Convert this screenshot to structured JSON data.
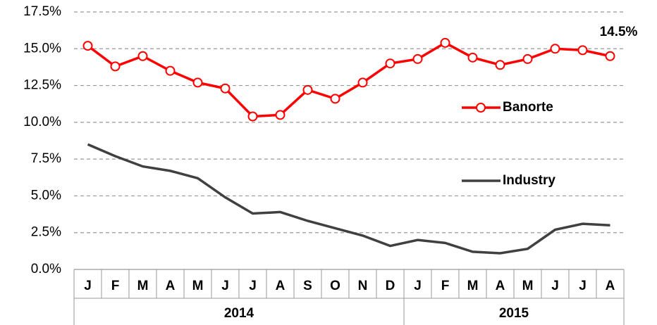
{
  "chart_data": {
    "type": "line",
    "categories": [
      "J",
      "F",
      "M",
      "A",
      "M",
      "J",
      "J",
      "A",
      "S",
      "O",
      "N",
      "D",
      "J",
      "F",
      "M",
      "A",
      "M",
      "J",
      "J",
      "A"
    ],
    "groups": [
      {
        "label": "2014",
        "start": 0,
        "end": 11
      },
      {
        "label": "2015",
        "start": 12,
        "end": 19
      }
    ],
    "series": [
      {
        "name": "Banorte",
        "color": "#ff0000",
        "marker": "circle",
        "values": [
          15.2,
          13.8,
          14.5,
          13.5,
          12.7,
          12.3,
          10.4,
          10.5,
          12.2,
          11.6,
          12.7,
          14.0,
          14.3,
          15.4,
          14.4,
          13.9,
          14.3,
          15.0,
          14.9,
          14.5
        ],
        "value_labels": [
          null,
          null,
          null,
          null,
          null,
          null,
          null,
          null,
          null,
          null,
          null,
          null,
          null,
          null,
          null,
          null,
          null,
          null,
          null,
          "14.5%"
        ]
      },
      {
        "name": "Industry",
        "color": "#404040",
        "values": [
          8.5,
          7.7,
          7.0,
          6.7,
          6.2,
          4.9,
          3.8,
          3.9,
          3.3,
          2.8,
          2.3,
          1.6,
          2.0,
          1.8,
          1.2,
          1.1,
          1.4,
          2.7,
          3.1,
          3.0
        ]
      }
    ],
    "ylim": [
      0,
      17.5
    ],
    "yticks": [
      {
        "value": 0,
        "label": "0.0%"
      },
      {
        "value": 2.5,
        "label": "2.5%"
      },
      {
        "value": 5,
        "label": "5.0%"
      },
      {
        "value": 7.5,
        "label": "7.5%"
      },
      {
        "value": 10,
        "label": "10.0%"
      },
      {
        "value": 12.5,
        "label": "12.5%"
      },
      {
        "value": 15,
        "label": "15.0%"
      },
      {
        "value": 17.5,
        "label": "17.5%"
      }
    ],
    "grid": true
  }
}
